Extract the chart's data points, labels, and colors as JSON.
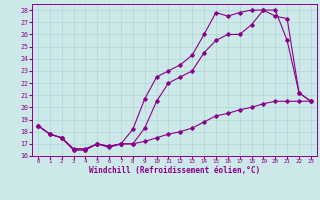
{
  "xlabel": "Windchill (Refroidissement éolien,°C)",
  "bg_color": "#cce8e8",
  "line_color": "#8b008b",
  "grid_color": "#b0d8d8",
  "xlim": [
    -0.5,
    23.5
  ],
  "ylim": [
    16,
    28.5
  ],
  "yticks": [
    16,
    17,
    18,
    19,
    20,
    21,
    22,
    23,
    24,
    25,
    26,
    27,
    28
  ],
  "xticks": [
    0,
    1,
    2,
    3,
    4,
    5,
    6,
    7,
    8,
    9,
    10,
    11,
    12,
    13,
    14,
    15,
    16,
    17,
    18,
    19,
    20,
    21,
    22,
    23
  ],
  "line1_x": [
    0,
    1,
    2,
    3,
    4,
    5,
    6,
    7,
    8,
    9,
    10,
    11,
    12,
    13,
    14,
    15,
    16,
    17,
    18,
    19,
    20,
    21,
    22,
    23
  ],
  "line1_y": [
    18.5,
    17.8,
    17.5,
    16.5,
    16.5,
    17.0,
    16.8,
    17.0,
    17.0,
    18.3,
    20.5,
    22.0,
    22.5,
    23.0,
    24.5,
    25.5,
    26.0,
    26.0,
    26.8,
    28.0,
    28.0,
    25.5,
    21.2,
    20.5
  ],
  "line2_x": [
    0,
    1,
    2,
    3,
    4,
    5,
    6,
    7,
    8,
    9,
    10,
    11,
    12,
    13,
    14,
    15,
    16,
    17,
    18,
    19,
    20,
    21,
    22,
    23
  ],
  "line2_y": [
    18.5,
    17.8,
    17.5,
    16.5,
    16.5,
    17.0,
    16.8,
    17.0,
    18.2,
    20.7,
    22.5,
    23.0,
    23.5,
    24.3,
    26.0,
    27.8,
    27.5,
    27.8,
    28.0,
    28.0,
    27.5,
    27.3,
    21.2,
    20.5
  ],
  "line3_x": [
    0,
    1,
    2,
    3,
    4,
    5,
    6,
    7,
    8,
    9,
    10,
    11,
    12,
    13,
    14,
    15,
    16,
    17,
    18,
    19,
    20,
    21,
    22,
    23
  ],
  "line3_y": [
    18.5,
    17.8,
    17.5,
    16.6,
    16.6,
    17.0,
    16.7,
    17.0,
    17.0,
    17.2,
    17.5,
    17.8,
    18.0,
    18.3,
    18.8,
    19.3,
    19.5,
    19.8,
    20.0,
    20.3,
    20.5,
    20.5,
    20.5,
    20.5
  ]
}
